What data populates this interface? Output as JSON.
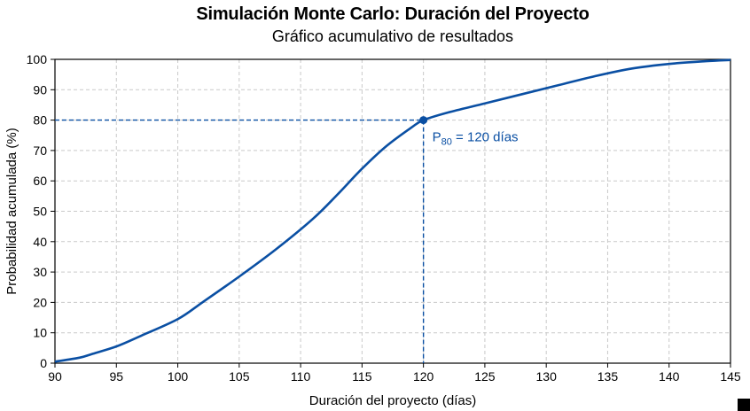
{
  "chart_data": {
    "type": "line",
    "title": "Simulación Monte Carlo: Duración del Proyecto",
    "subtitle": "Gráfico acumulativo de resultados",
    "xlabel": "Duración del proyecto (días)",
    "ylabel": "Probabilidad acumulada (%)",
    "xlim": [
      90,
      145
    ],
    "ylim": [
      0,
      100
    ],
    "xticks": [
      90,
      95,
      100,
      105,
      110,
      115,
      120,
      125,
      130,
      135,
      140,
      145
    ],
    "yticks": [
      0,
      10,
      20,
      30,
      40,
      50,
      60,
      70,
      80,
      90,
      100
    ],
    "grid": true,
    "series": [
      {
        "color": "#0a4fa3",
        "x": [
          90,
          92,
          93,
          95,
          97,
          100,
          102,
          105,
          108,
          111,
          113,
          115,
          117,
          119,
          120,
          122,
          125,
          128,
          131,
          134,
          137,
          140,
          143,
          145
        ],
        "y": [
          0.5,
          1.8,
          3.0,
          5.5,
          9.0,
          14.5,
          20.0,
          28.5,
          37.5,
          47.5,
          55.5,
          64.0,
          71.5,
          77.5,
          80.0,
          82.5,
          85.5,
          88.5,
          91.5,
          94.5,
          97.0,
          98.5,
          99.4,
          99.8
        ]
      }
    ],
    "annotation": {
      "x": 120,
      "y": 80,
      "label_main": "P",
      "label_sub": "80",
      "label_rest": " = 120 días",
      "color": "#0a4fa3"
    }
  }
}
